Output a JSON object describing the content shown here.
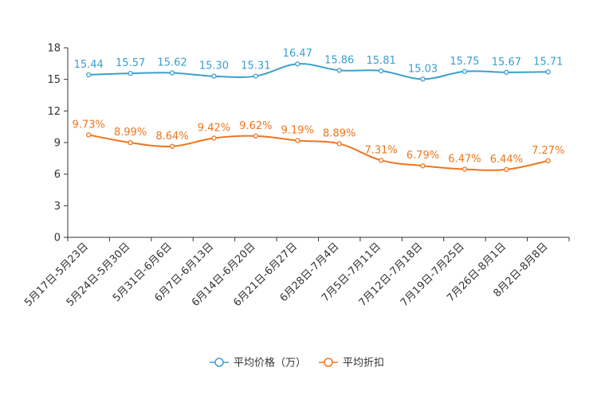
{
  "chart_data": {
    "type": "line",
    "categories": [
      "5月17日-5月23日",
      "5月24日-5月30日",
      "5月31日-6月6日",
      "6月7日-6月13日",
      "6月14日-6月20日",
      "6月21日-6月27日",
      "6月28日-7月4日",
      "7月5日-7月11日",
      "7月12日-7月18日",
      "7月19日-7月25日",
      "7月26日-8月1日",
      "8月2日-8月8日"
    ],
    "series": [
      {
        "name": "平均价格（万）",
        "color": "#3a9fd0",
        "values": [
          15.44,
          15.57,
          15.62,
          15.3,
          15.31,
          16.47,
          15.86,
          15.81,
          15.03,
          15.75,
          15.67,
          15.71
        ],
        "labels": [
          "15.44",
          "15.57",
          "15.62",
          "15.30",
          "15.31",
          "16.47",
          "15.86",
          "15.81",
          "15.03",
          "15.75",
          "15.67",
          "15.71"
        ]
      },
      {
        "name": "平均折扣",
        "color": "#f0751b",
        "values": [
          9.73,
          8.99,
          8.64,
          9.42,
          9.62,
          9.19,
          8.89,
          7.31,
          6.79,
          6.47,
          6.44,
          7.27
        ],
        "labels": [
          "9.73%",
          "8.99%",
          "8.64%",
          "9.42%",
          "9.62%",
          "9.19%",
          "8.89%",
          "7.31%",
          "6.79%",
          "6.47%",
          "6.44%",
          "7.27%"
        ]
      }
    ],
    "ylim": [
      0,
      18
    ],
    "yticks": [
      "0",
      "3",
      "6",
      "9",
      "12",
      "15",
      "18"
    ],
    "ytick_values": [
      0,
      3,
      6,
      9,
      12,
      15,
      18
    ],
    "legend_position": "bottom-center",
    "grid": false
  }
}
